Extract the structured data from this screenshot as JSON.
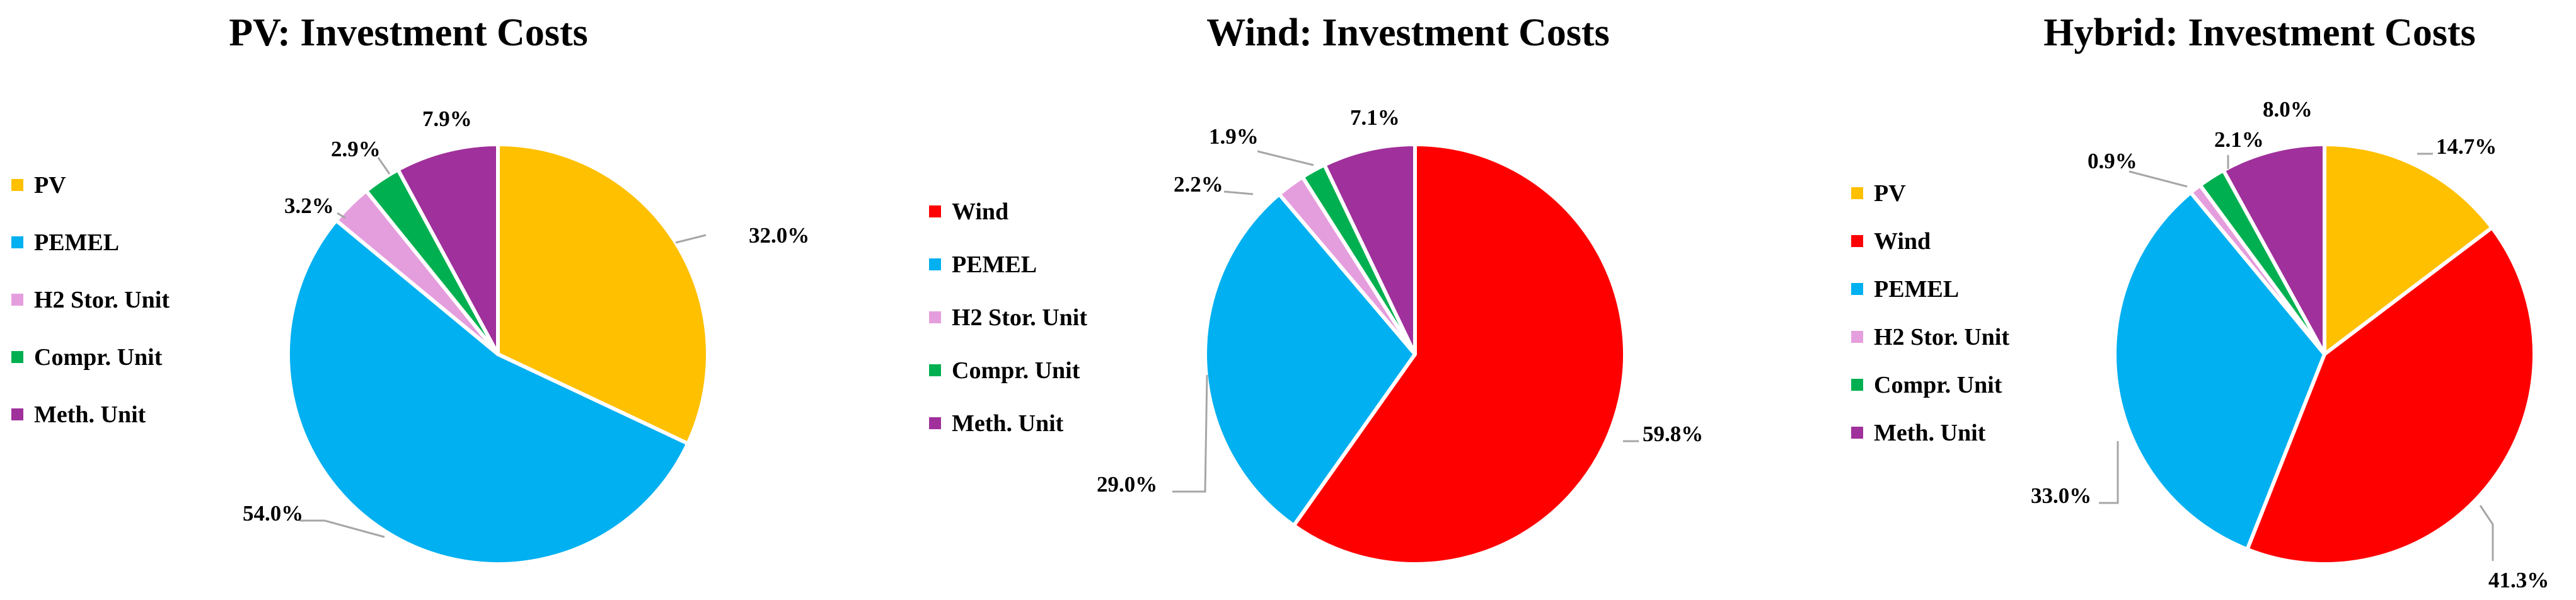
{
  "chart_data": [
    {
      "type": "pie",
      "title": "PV: Investment Costs",
      "legend_position": "left",
      "labels": [
        "PV",
        "PEMEL",
        "H2 Stor. Unit",
        "Compr. Unit",
        "Meth. Unit"
      ],
      "values": [
        32.0,
        54.0,
        3.2,
        2.9,
        7.9
      ],
      "data_labels": [
        "32.0%",
        "54.0%",
        "3.2%",
        "2.9%",
        "7.9%"
      ],
      "colors": [
        "#FFC000",
        "#00B0F0",
        "#E59EDD",
        "#00B050",
        "#A0309B"
      ]
    },
    {
      "type": "pie",
      "title": "Wind: Investment Costs",
      "legend_position": "left",
      "labels": [
        "Wind",
        "PEMEL",
        "H2 Stor. Unit",
        "Compr. Unit",
        "Meth. Unit"
      ],
      "values": [
        59.8,
        29.0,
        2.2,
        1.9,
        7.1
      ],
      "data_labels": [
        "59.8%",
        "29.0%",
        "2.2%",
        "1.9%",
        "7.1%"
      ],
      "colors": [
        "#FF0000",
        "#00B0F0",
        "#E59EDD",
        "#00B050",
        "#A0309B"
      ]
    },
    {
      "type": "pie",
      "title": "Hybrid: Investment Costs",
      "legend_position": "left",
      "labels": [
        "PV",
        "Wind",
        "PEMEL",
        "H2 Stor. Unit",
        "Compr. Unit",
        "Meth. Unit"
      ],
      "values": [
        14.7,
        41.3,
        33.0,
        0.9,
        2.1,
        8.0
      ],
      "data_labels": [
        "14.7%",
        "41.3%",
        "33.0%",
        "0.9%",
        "2.1%",
        "8.0%"
      ],
      "colors": [
        "#FFC000",
        "#FF0000",
        "#00B0F0",
        "#E59EDD",
        "#00B050",
        "#A0309B"
      ]
    }
  ]
}
